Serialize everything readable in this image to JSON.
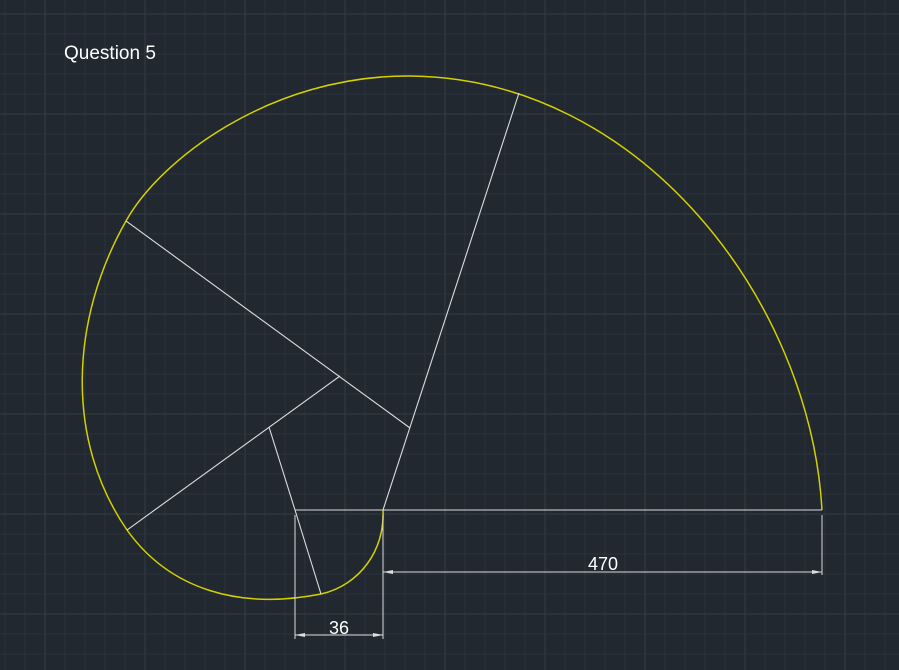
{
  "drawing": {
    "title": "Question 5",
    "dimensions": {
      "large": "470",
      "small": "36"
    },
    "colors": {
      "background": "#212830",
      "spiral": "#d4d000",
      "lines": "#dcdcdc",
      "text": "#ffffff",
      "grid": "#2a323b"
    }
  }
}
